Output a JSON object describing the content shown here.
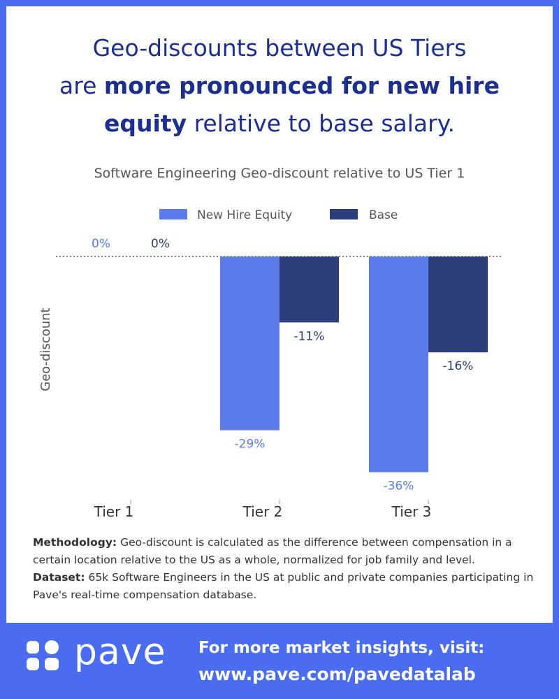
{
  "headline": {
    "line1": "Geo-discounts between US Tiers",
    "line2_pre": "are ",
    "line2_bold": "more pronounced for new hire",
    "line3_bold": "equity",
    "line3_post": " relative to base salary."
  },
  "colors": {
    "frame": "#4a6df0",
    "new_hire_equity": "#5b7be8",
    "base": "#2c3e7c",
    "headline": "#1c2f8f"
  },
  "chart_data": {
    "type": "bar",
    "title": "Software Engineering Geo-discount relative to US Tier 1",
    "ylabel": "Geo-discount",
    "xlabel": "",
    "categories": [
      "Tier 1",
      "Tier 2",
      "Tier 3"
    ],
    "series": [
      {
        "name": "New Hire Equity",
        "values": [
          0,
          -29,
          -36
        ],
        "labels": [
          "0%",
          "-29%",
          "-36%"
        ]
      },
      {
        "name": "Base",
        "values": [
          0,
          -11,
          -16
        ],
        "labels": [
          "0%",
          "-11%",
          "-16%"
        ]
      }
    ],
    "ylim": [
      -38,
      0
    ],
    "legend": "top-center",
    "grid": false,
    "zero_line": "dotted"
  },
  "methodology": {
    "label": "Methodology:",
    "text": " Geo-discount is calculated as the difference between compensation in a certain location relative to the US as a whole, normalized for job family and level."
  },
  "dataset": {
    "label": "Dataset:",
    "text": " 65k Software Engineers in the US at public and private companies participating in Pave's real-time compensation database."
  },
  "footer": {
    "logo_text": "pave",
    "cta_line1": "For more market insights, visit:",
    "cta_line2": "www.pave.com/pavedatalab"
  }
}
